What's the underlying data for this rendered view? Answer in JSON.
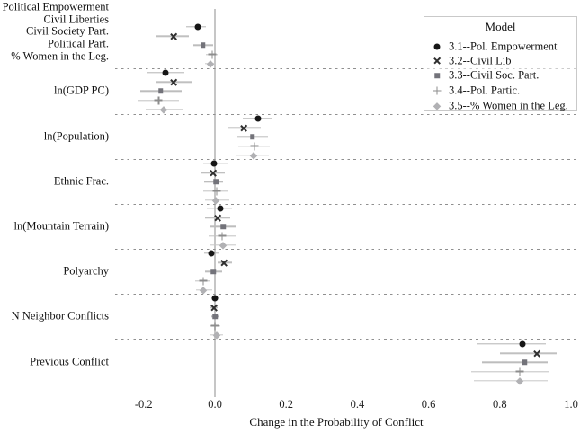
{
  "chart_data": {
    "type": "scatter",
    "subtype": "coefficient-forest-plot",
    "title": "",
    "xlabel": "Change in the Probability of Conflict",
    "xlim": [
      -0.27,
      1.03
    ],
    "x_ticks": [
      -0.2,
      0.0,
      0.2,
      0.4,
      0.6,
      0.8,
      1.0
    ],
    "x_tick_labels": [
      "-0.2",
      "0.0",
      "0.2",
      "0.4",
      "0.6",
      "0.8",
      "1.0"
    ],
    "zero_reference_line": 0.0,
    "grid": "dashed horizontal separators between variable groups",
    "legend": {
      "title": "Model",
      "position": "top-right",
      "entries": [
        {
          "label": "3.1--Pol. Empowerment",
          "marker": "circle",
          "color": "#161616",
          "ci_color": "#b3b3b3"
        },
        {
          "label": "3.2--Civil Lib",
          "marker": "x",
          "color": "#2e2e2e",
          "ci_color": "#c0c0c0"
        },
        {
          "label": "3.3--Civil Soc. Part.",
          "marker": "square",
          "color": "#73737a",
          "ci_color": "#bdbdbd"
        },
        {
          "label": "3.4--Pol. Partic.",
          "marker": "plus",
          "color": "#8d8d8d",
          "ci_color": "#c2c2c2"
        },
        {
          "label": "3.5--% Women in the Leg.",
          "marker": "diamond",
          "color": "#b1b1b4",
          "ci_color": "#c6c6c6"
        }
      ]
    },
    "groups": [
      {
        "label_lines": [
          "Political Empowerment",
          "Civil Liberties",
          "Civil Society Part.",
          "Political Part.",
          "% Women in the Leg."
        ],
        "estimates": [
          {
            "model": "3.1",
            "value": -0.048,
            "ci": [
              -0.08,
              -0.026
            ]
          },
          {
            "model": "3.2",
            "value": -0.116,
            "ci": [
              -0.166,
              -0.072
            ]
          },
          {
            "model": "3.3",
            "value": -0.033,
            "ci": [
              -0.06,
              -0.006
            ]
          },
          {
            "model": "3.4",
            "value": -0.008,
            "ci": [
              -0.024,
              0.008
            ]
          },
          {
            "model": "3.5",
            "value": -0.013,
            "ci": [
              -0.028,
              0.003
            ]
          }
        ]
      },
      {
        "label_lines": [
          "ln(GDP PC)"
        ],
        "estimates": [
          {
            "model": "3.1",
            "value": -0.14,
            "ci": [
              -0.191,
              -0.086
            ]
          },
          {
            "model": "3.2",
            "value": -0.116,
            "ci": [
              -0.166,
              -0.062
            ]
          },
          {
            "model": "3.3",
            "value": -0.152,
            "ci": [
              -0.21,
              -0.093
            ]
          },
          {
            "model": "3.4",
            "value": -0.158,
            "ci": [
              -0.216,
              -0.1
            ]
          },
          {
            "model": "3.5",
            "value": -0.144,
            "ci": [
              -0.194,
              -0.09
            ]
          }
        ]
      },
      {
        "label_lines": [
          "ln(Population)"
        ],
        "estimates": [
          {
            "model": "3.1",
            "value": 0.12,
            "ci": [
              0.078,
              0.16
            ]
          },
          {
            "model": "3.2",
            "value": 0.082,
            "ci": [
              0.036,
              0.128
            ]
          },
          {
            "model": "3.3",
            "value": 0.106,
            "ci": [
              0.062,
              0.148
            ]
          },
          {
            "model": "3.4",
            "value": 0.111,
            "ci": [
              0.065,
              0.154
            ]
          },
          {
            "model": "3.5",
            "value": 0.108,
            "ci": [
              0.06,
              0.152
            ]
          }
        ]
      },
      {
        "label_lines": [
          "Ethnic Frac."
        ],
        "estimates": [
          {
            "model": "3.1",
            "value": -0.003,
            "ci": [
              -0.033,
              0.035
            ]
          },
          {
            "model": "3.2",
            "value": -0.005,
            "ci": [
              -0.04,
              0.028
            ]
          },
          {
            "model": "3.3",
            "value": 0.003,
            "ci": [
              -0.03,
              0.024
            ]
          },
          {
            "model": "3.4",
            "value": 0.005,
            "ci": [
              -0.033,
              0.038
            ]
          },
          {
            "model": "3.5",
            "value": 0.003,
            "ci": [
              -0.028,
              0.04
            ]
          }
        ]
      },
      {
        "label_lines": [
          "ln(Mountain Terrain)"
        ],
        "estimates": [
          {
            "model": "3.1",
            "value": 0.015,
            "ci": [
              -0.023,
              0.048
            ]
          },
          {
            "model": "3.2",
            "value": 0.008,
            "ci": [
              -0.028,
              0.043
            ]
          },
          {
            "model": "3.3",
            "value": 0.023,
            "ci": [
              -0.015,
              0.06
            ]
          },
          {
            "model": "3.4",
            "value": 0.02,
            "ci": [
              -0.018,
              0.058
            ]
          },
          {
            "model": "3.5",
            "value": 0.023,
            "ci": [
              -0.013,
              0.06
            ]
          }
        ]
      },
      {
        "label_lines": [
          "Polyarchy"
        ],
        "estimates": [
          {
            "model": "3.1",
            "value": -0.01,
            "ci": [
              -0.03,
              0.01
            ]
          },
          {
            "model": "3.2",
            "value": 0.025,
            "ci": [
              0.008,
              0.048
            ]
          },
          {
            "model": "3.3",
            "value": -0.005,
            "ci": [
              -0.028,
              0.02
            ]
          },
          {
            "model": "3.4",
            "value": -0.033,
            "ci": [
              -0.055,
              -0.012
            ]
          },
          {
            "model": "3.5",
            "value": -0.033,
            "ci": [
              -0.053,
              -0.008
            ]
          }
        ]
      },
      {
        "label_lines": [
          "N Neighbor Conflicts"
        ],
        "estimates": [
          {
            "model": "3.1",
            "value": 0.0,
            "ci": [
              -0.01,
              0.01
            ]
          },
          {
            "model": "3.2",
            "value": -0.003,
            "ci": [
              -0.013,
              0.008
            ]
          },
          {
            "model": "3.3",
            "value": 0.0,
            "ci": [
              -0.01,
              0.013
            ]
          },
          {
            "model": "3.4",
            "value": 0.0,
            "ci": [
              -0.015,
              0.015
            ]
          },
          {
            "model": "3.5",
            "value": 0.005,
            "ci": [
              -0.015,
              0.023
            ]
          }
        ]
      },
      {
        "label_lines": [
          "Previous Conflict"
        ],
        "estimates": [
          {
            "model": "3.1",
            "value": 0.864,
            "ci": [
              0.738,
              0.93
            ]
          },
          {
            "model": "3.2",
            "value": 0.904,
            "ci": [
              0.801,
              0.96
            ]
          },
          {
            "model": "3.3",
            "value": 0.869,
            "ci": [
              0.751,
              0.934
            ]
          },
          {
            "model": "3.4",
            "value": 0.856,
            "ci": [
              0.72,
              0.939
            ]
          },
          {
            "model": "3.5",
            "value": 0.856,
            "ci": [
              0.728,
              0.934
            ]
          }
        ]
      }
    ]
  },
  "colors": {
    "background": "#ffffff",
    "zero_line": "#c6c6c6",
    "separator": "#8f8f8f",
    "text": "#111111",
    "legend_border": "#c9c9c9"
  }
}
